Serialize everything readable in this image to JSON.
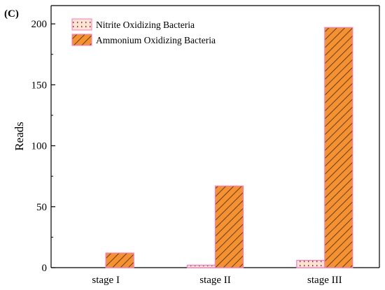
{
  "panel_label": "(C)",
  "colors": {
    "nob_fill": "#fde3d3",
    "nob_dot": "#8a4a2a",
    "aob_fill": "#f5922f",
    "aob_hatch": "#3a2a10",
    "bar_stroke": "#ff77c8"
  },
  "chart_data": {
    "type": "bar",
    "categories": [
      "stage I",
      "stage II",
      "stage III"
    ],
    "series": [
      {
        "name": "Nitrite Oxidizing Bacteria",
        "values": [
          0,
          2,
          6
        ]
      },
      {
        "name": "Ammonium Oxidizing Bacteria",
        "values": [
          12,
          67,
          197
        ]
      }
    ],
    "title": "",
    "xlabel": "",
    "ylabel": "Reads",
    "ylim": [
      0,
      215
    ],
    "yticks": [
      0,
      50,
      100,
      150,
      200
    ],
    "legend_position": "top-left",
    "grid": false
  }
}
